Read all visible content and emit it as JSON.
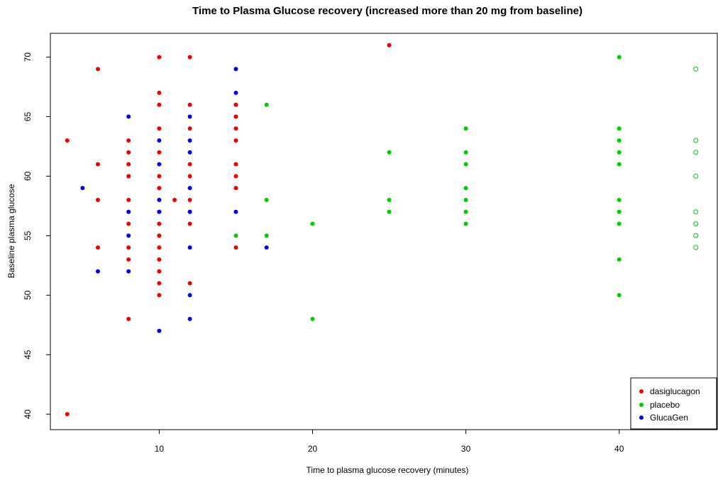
{
  "chart_data": {
    "type": "scatter",
    "title": "Time to Plasma Glucose recovery (increased more than 20 mg from baseline)",
    "xlabel": "Time to plasma glucose recovery (minutes)",
    "ylabel": "Baseline plasma glucose",
    "xlim": [
      2.9,
      46.4
    ],
    "ylim": [
      38.7,
      72.0
    ],
    "x_ticks": [
      "10",
      "20",
      "30",
      "40"
    ],
    "y_ticks": [
      "40",
      "45",
      "50",
      "55",
      "60",
      "65",
      "70"
    ],
    "legend_position": "bottom-right",
    "series": [
      {
        "name": "dasiglucagon",
        "color": "#ee0000",
        "marker": "filled",
        "points": [
          [
            4,
            63
          ],
          [
            4,
            40
          ],
          [
            6,
            69
          ],
          [
            6,
            61
          ],
          [
            6,
            58
          ],
          [
            6,
            54
          ],
          [
            8,
            63
          ],
          [
            8,
            62
          ],
          [
            8,
            61
          ],
          [
            8,
            60
          ],
          [
            8,
            58
          ],
          [
            8,
            56
          ],
          [
            8,
            54
          ],
          [
            8,
            53
          ],
          [
            8,
            48
          ],
          [
            10,
            70
          ],
          [
            10,
            67
          ],
          [
            10,
            66
          ],
          [
            10,
            64
          ],
          [
            10,
            62
          ],
          [
            10,
            60
          ],
          [
            10,
            59
          ],
          [
            10,
            58
          ],
          [
            10,
            57
          ],
          [
            10,
            56
          ],
          [
            10,
            55
          ],
          [
            10,
            54
          ],
          [
            10,
            53
          ],
          [
            10,
            52
          ],
          [
            10,
            51
          ],
          [
            10,
            50
          ],
          [
            11,
            58
          ],
          [
            12,
            70
          ],
          [
            12,
            66
          ],
          [
            12,
            64
          ],
          [
            12,
            61
          ],
          [
            12,
            60
          ],
          [
            12,
            58
          ],
          [
            12,
            57
          ],
          [
            12,
            56
          ],
          [
            12,
            51
          ],
          [
            15,
            66
          ],
          [
            15,
            65
          ],
          [
            15,
            64
          ],
          [
            15,
            63
          ],
          [
            15,
            61
          ],
          [
            15,
            60
          ],
          [
            15,
            59
          ],
          [
            15,
            54
          ],
          [
            25,
            71
          ]
        ]
      },
      {
        "name": "placebo",
        "color": "#00cc00",
        "marker": "filled",
        "points": [
          [
            15,
            55
          ],
          [
            17,
            66
          ],
          [
            17,
            58
          ],
          [
            17,
            55
          ],
          [
            20,
            56
          ],
          [
            20,
            48
          ],
          [
            25,
            62
          ],
          [
            25,
            58
          ],
          [
            25,
            57
          ],
          [
            30,
            64
          ],
          [
            30,
            62
          ],
          [
            30,
            61
          ],
          [
            30,
            59
          ],
          [
            30,
            58
          ],
          [
            30,
            57
          ],
          [
            30,
            56
          ],
          [
            40,
            70
          ],
          [
            40,
            64
          ],
          [
            40,
            63
          ],
          [
            40,
            62
          ],
          [
            40,
            61
          ],
          [
            40,
            58
          ],
          [
            40,
            57
          ],
          [
            40,
            56
          ],
          [
            40,
            53
          ],
          [
            40,
            50
          ]
        ]
      },
      {
        "name": "placebo-open",
        "color": "#00cc00",
        "marker": "open",
        "points": [
          [
            45,
            69
          ],
          [
            45,
            63
          ],
          [
            45,
            62
          ],
          [
            45,
            60
          ],
          [
            45,
            57
          ],
          [
            45,
            56
          ],
          [
            45,
            55
          ],
          [
            45,
            54
          ]
        ]
      },
      {
        "name": "GlucaGen",
        "color": "#0000ee",
        "marker": "filled",
        "points": [
          [
            5,
            59
          ],
          [
            6,
            52
          ],
          [
            8,
            65
          ],
          [
            8,
            57
          ],
          [
            8,
            55
          ],
          [
            8,
            52
          ],
          [
            10,
            63
          ],
          [
            10,
            61
          ],
          [
            10,
            58
          ],
          [
            10,
            57
          ],
          [
            10,
            47
          ],
          [
            12,
            65
          ],
          [
            12,
            63
          ],
          [
            12,
            62
          ],
          [
            12,
            59
          ],
          [
            12,
            57
          ],
          [
            12,
            54
          ],
          [
            12,
            50
          ],
          [
            12,
            48
          ],
          [
            15,
            69
          ],
          [
            15,
            67
          ],
          [
            15,
            57
          ],
          [
            17,
            54
          ]
        ]
      }
    ],
    "legend": [
      {
        "label": "dasiglucagon",
        "color": "#ee0000"
      },
      {
        "label": "placebo",
        "color": "#00cc00"
      },
      {
        "label": "GlucaGen",
        "color": "#0000ee"
      }
    ]
  }
}
